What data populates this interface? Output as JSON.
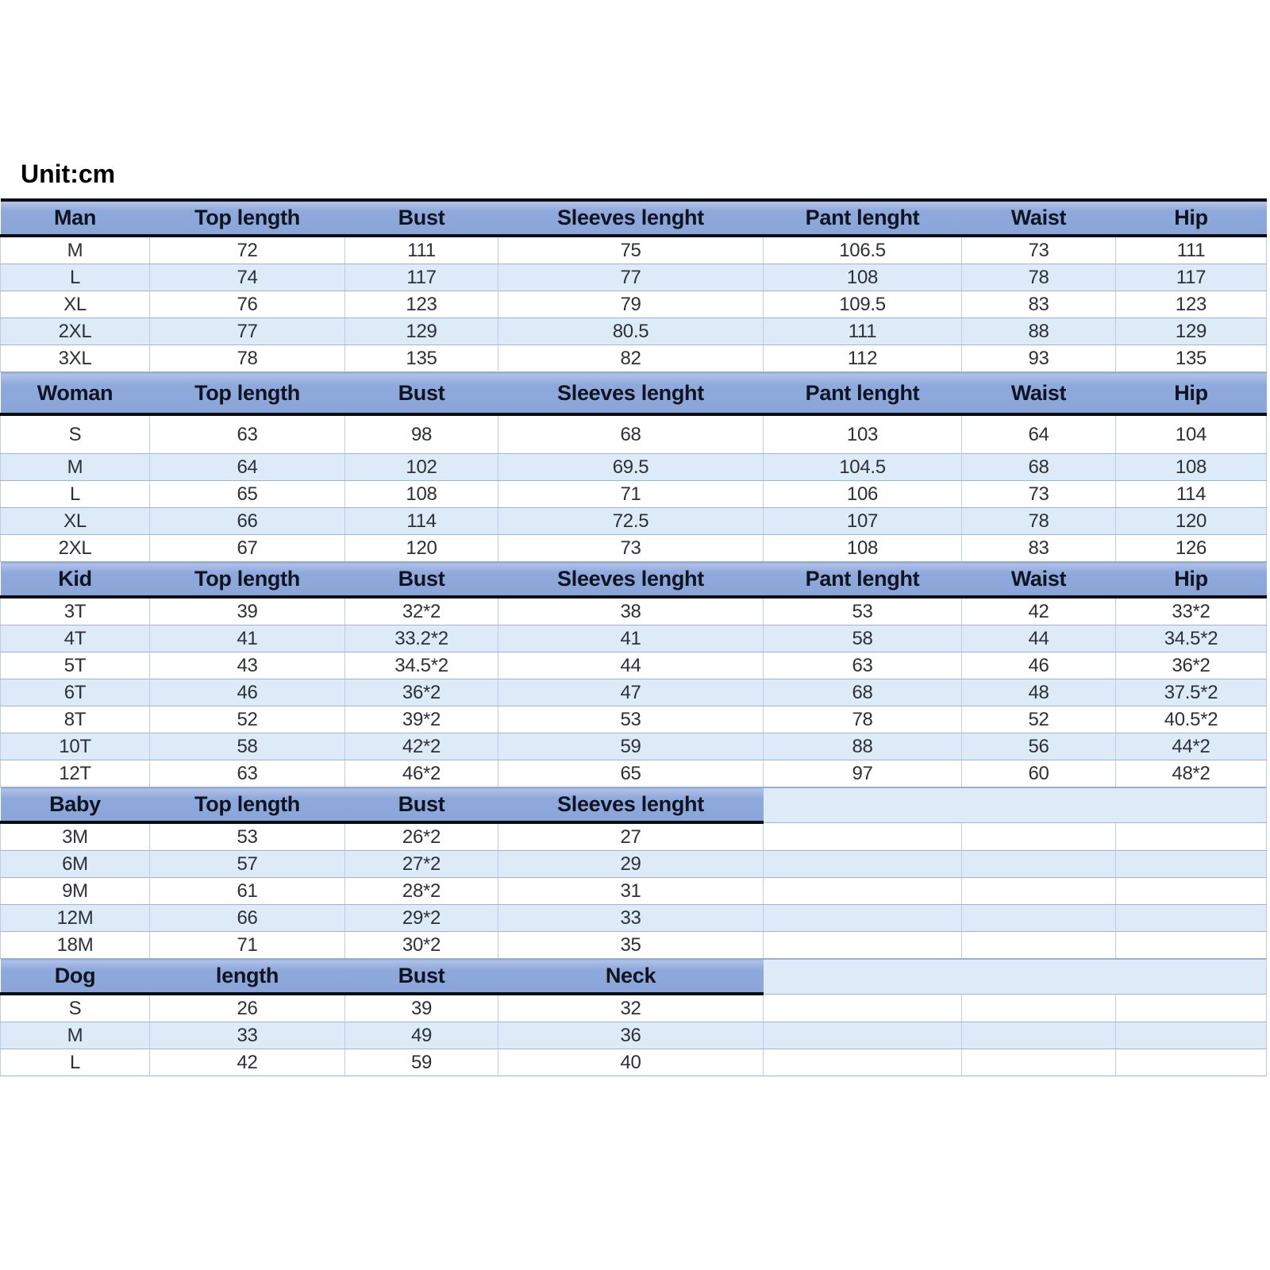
{
  "unit_label": "Unit:cm",
  "colors": {
    "header_fill": "#8EA9DB",
    "row_alt_fill": "#DCEBF7",
    "row_plain_fill": "#FFFFFF",
    "thick_border": "#0C0C12",
    "gridline": "#9DB5D6"
  },
  "chart_data": {
    "type": "table",
    "title": "Unit:cm",
    "sections": [
      {
        "id": "man",
        "header": [
          "Man",
          "Top length",
          "Bust",
          "Sleeves lenght",
          "Pant lenght",
          "Waist",
          "Hip"
        ],
        "rows": [
          [
            "M",
            "72",
            "111",
            "75",
            "106.5",
            "73",
            "111"
          ],
          [
            "L",
            "74",
            "117",
            "77",
            "108",
            "78",
            "117"
          ],
          [
            "XL",
            "76",
            "123",
            "79",
            "109.5",
            "83",
            "123"
          ],
          [
            "2XL",
            "77",
            "129",
            "80.5",
            "111",
            "88",
            "129"
          ],
          [
            "3XL",
            "78",
            "135",
            "82",
            "112",
            "93",
            "135"
          ]
        ]
      },
      {
        "id": "woman",
        "header": [
          "Woman",
          "Top length",
          "Bust",
          "Sleeves lenght",
          "Pant lenght",
          "Waist",
          "Hip"
        ],
        "rows": [
          [
            "S",
            "63",
            "98",
            "68",
            "103",
            "64",
            "104"
          ],
          [
            "M",
            "64",
            "102",
            "69.5",
            "104.5",
            "68",
            "108"
          ],
          [
            "L",
            "65",
            "108",
            "71",
            "106",
            "73",
            "114"
          ],
          [
            "XL",
            "66",
            "114",
            "72.5",
            "107",
            "78",
            "120"
          ],
          [
            "2XL",
            "67",
            "120",
            "73",
            "108",
            "83",
            "126"
          ]
        ]
      },
      {
        "id": "kid",
        "header": [
          "Kid",
          "Top length",
          "Bust",
          "Sleeves lenght",
          "Pant lenght",
          "Waist",
          "Hip"
        ],
        "rows": [
          [
            "3T",
            "39",
            "32*2",
            "38",
            "53",
            "42",
            "33*2"
          ],
          [
            "4T",
            "41",
            "33.2*2",
            "41",
            "58",
            "44",
            "34.5*2"
          ],
          [
            "5T",
            "43",
            "34.5*2",
            "44",
            "63",
            "46",
            "36*2"
          ],
          [
            "6T",
            "46",
            "36*2",
            "47",
            "68",
            "48",
            "37.5*2"
          ],
          [
            "8T",
            "52",
            "39*2",
            "53",
            "78",
            "52",
            "40.5*2"
          ],
          [
            "10T",
            "58",
            "42*2",
            "59",
            "88",
            "56",
            "44*2"
          ],
          [
            "12T",
            "63",
            "46*2",
            "65",
            "97",
            "60",
            "48*2"
          ]
        ]
      },
      {
        "id": "baby",
        "header": [
          "Baby",
          "Top length",
          "Bust",
          "Sleeves lenght",
          "",
          "",
          ""
        ],
        "rows": [
          [
            "3M",
            "53",
            "26*2",
            "27",
            "",
            "",
            ""
          ],
          [
            "6M",
            "57",
            "27*2",
            "29",
            "",
            "",
            ""
          ],
          [
            "9M",
            "61",
            "28*2",
            "31",
            "",
            "",
            ""
          ],
          [
            "12M",
            "66",
            "29*2",
            "33",
            "",
            "",
            ""
          ],
          [
            "18M",
            "71",
            "30*2",
            "35",
            "",
            "",
            ""
          ]
        ]
      },
      {
        "id": "dog",
        "header": [
          "Dog",
          "length",
          "Bust",
          "Neck",
          "",
          "",
          ""
        ],
        "rows": [
          [
            "S",
            "26",
            "39",
            "32",
            "",
            "",
            ""
          ],
          [
            "M",
            "33",
            "49",
            "36",
            "",
            "",
            ""
          ],
          [
            "L",
            "42",
            "59",
            "40",
            "",
            "",
            ""
          ]
        ]
      }
    ]
  }
}
